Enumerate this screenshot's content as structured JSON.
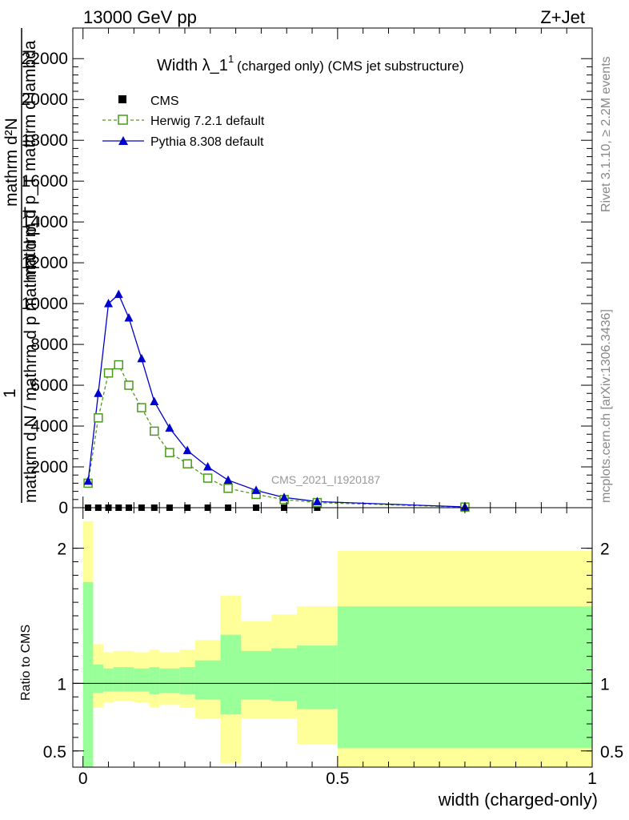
{
  "header": {
    "left": "13000 GeV pp",
    "right": "Z+Jet"
  },
  "side_labels": {
    "rivet": "Rivet 3.1.10, ≥ 2.2M events",
    "mcplots": "mcplots.cern.ch [arXiv:1306.3436]"
  },
  "chart_data": [
    {
      "type": "line",
      "title": "Width λ_1",
      "title_sup": "1",
      "subtitle": "(charged only) (CMS jet substructure)",
      "watermark": "CMS_2021_I1920187",
      "ylabel_numerator": "1",
      "ylabel_denominator": "mathrm d N / mathrm d p mathrm d p_T",
      "ylabel_extra": "mathrm d²N",
      "ylabel_extra2": "mathrm d p_T mathrm d lambda",
      "ylim": [
        0,
        23500
      ],
      "yticks": [
        0,
        2000,
        4000,
        6000,
        8000,
        10000,
        12000,
        14000,
        16000,
        18000,
        20000,
        22000
      ],
      "ytick_labels": [
        "0",
        "2000",
        "4000",
        "6000",
        "8000",
        "10000",
        "12000",
        "14000",
        "16000",
        "18000",
        "20000",
        "22000"
      ],
      "xlim": [
        -0.02,
        1.0
      ],
      "legend_position": "top-left",
      "series": [
        {
          "name": "CMS",
          "color": "#000000",
          "marker": "square-filled",
          "x": [
            0.01,
            0.03,
            0.05,
            0.07,
            0.09,
            0.115,
            0.14,
            0.17,
            0.205,
            0.245,
            0.285,
            0.34,
            0.395,
            0.46,
            0.75
          ],
          "values": [
            0,
            0,
            0,
            0,
            0,
            0,
            0,
            0,
            0,
            0,
            0,
            0,
            0,
            0,
            0
          ]
        },
        {
          "name": "Herwig 7.2.1 default",
          "color": "#4a9a1a",
          "marker": "square-open",
          "dashed": true,
          "x": [
            0.01,
            0.03,
            0.05,
            0.07,
            0.09,
            0.115,
            0.14,
            0.17,
            0.205,
            0.245,
            0.285,
            0.34,
            0.395,
            0.46,
            0.75
          ],
          "values": [
            1200,
            4400,
            6600,
            7000,
            6000,
            4900,
            3750,
            2700,
            2150,
            1450,
            950,
            650,
            400,
            250,
            30
          ]
        },
        {
          "name": "Pythia 8.308 default",
          "color": "#0000cc",
          "marker": "triangle-filled",
          "dashed": false,
          "x": [
            0.01,
            0.03,
            0.05,
            0.07,
            0.09,
            0.115,
            0.14,
            0.17,
            0.205,
            0.245,
            0.285,
            0.34,
            0.395,
            0.46,
            0.75
          ],
          "values": [
            1300,
            5600,
            10000,
            10450,
            9300,
            7300,
            5200,
            3900,
            2800,
            2000,
            1350,
            850,
            500,
            300,
            40
          ]
        }
      ]
    },
    {
      "type": "area",
      "ylabel": "Ratio to CMS",
      "ylim": [
        0.38,
        2.3
      ],
      "yticks": [
        0.5,
        1,
        2
      ],
      "ytick_labels": [
        "0.5",
        "1",
        "2"
      ],
      "xlim": [
        -0.02,
        1.0
      ],
      "xticks": [
        0,
        0.5,
        1
      ],
      "xtick_labels": [
        "0",
        "0.5",
        "1"
      ],
      "xlabel": "width (charged-only)",
      "reference_line": 1,
      "bands": {
        "edges": [
          0.0,
          0.02,
          0.04,
          0.06,
          0.08,
          0.1,
          0.13,
          0.15,
          0.19,
          0.22,
          0.27,
          0.31,
          0.37,
          0.42,
          0.5,
          1.0
        ],
        "outer_low": [
          0.02,
          0.82,
          0.86,
          0.87,
          0.87,
          0.86,
          0.82,
          0.84,
          0.82,
          0.74,
          0.41,
          0.74,
          0.74,
          0.55,
          0.36,
          0.36
        ],
        "outer_high": [
          2.2,
          1.29,
          1.23,
          1.24,
          1.24,
          1.23,
          1.25,
          1.23,
          1.25,
          1.32,
          1.65,
          1.46,
          1.51,
          1.57,
          1.98,
          1.98
        ],
        "inner_low": [
          0.02,
          0.93,
          0.94,
          0.94,
          0.94,
          0.94,
          0.92,
          0.93,
          0.92,
          0.88,
          0.77,
          0.88,
          0.87,
          0.81,
          0.52,
          0.52
        ],
        "inner_high": [
          1.75,
          1.14,
          1.11,
          1.12,
          1.12,
          1.11,
          1.12,
          1.11,
          1.12,
          1.17,
          1.36,
          1.24,
          1.26,
          1.28,
          1.57,
          1.57
        ],
        "outer_color": "#ffff99",
        "inner_color": "#99ff99"
      }
    }
  ]
}
